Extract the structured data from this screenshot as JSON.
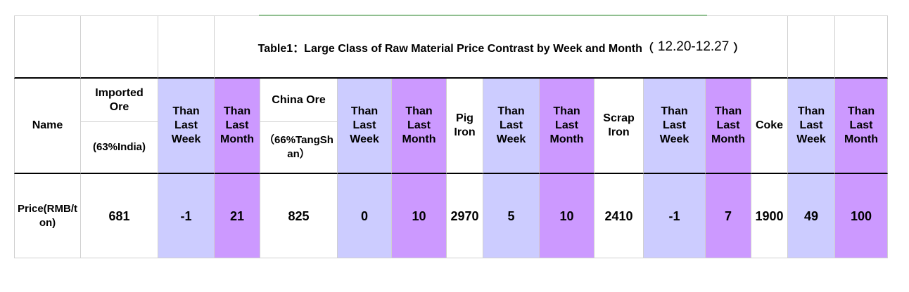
{
  "title": [
    "Table1：Large Class of Raw Material Price Contrast by Week and Month（",
    "12.20-12.27",
    "）"
  ],
  "table": {
    "header": [
      {
        "text": "Name"
      },
      {
        "text": "Imported Ore",
        "sub": "(63%India)"
      },
      {
        "text": "Than Last Week"
      },
      {
        "text": "Than Last Month"
      },
      {
        "text": "China Ore",
        "sub": "（66%TangShan）"
      },
      {
        "text": "Than Last Week"
      },
      {
        "text": "Than Last Month"
      },
      {
        "text": "Pig Iron"
      },
      {
        "text": "Than Last Week"
      },
      {
        "text": "Than Last Month"
      },
      {
        "text": "Scrap Iron"
      },
      {
        "text": "Than Last Week"
      },
      {
        "text": "Than Last Month"
      },
      {
        "text": "Coke"
      },
      {
        "text": "Than Last Week"
      },
      {
        "text": "Than Last Month"
      }
    ],
    "rows": [
      [
        "Price(RMB/ton)",
        681,
        -1,
        21,
        825,
        0,
        10,
        2970,
        5,
        10,
        2410,
        -1,
        7,
        1900,
        49,
        100
      ]
    ]
  }
}
